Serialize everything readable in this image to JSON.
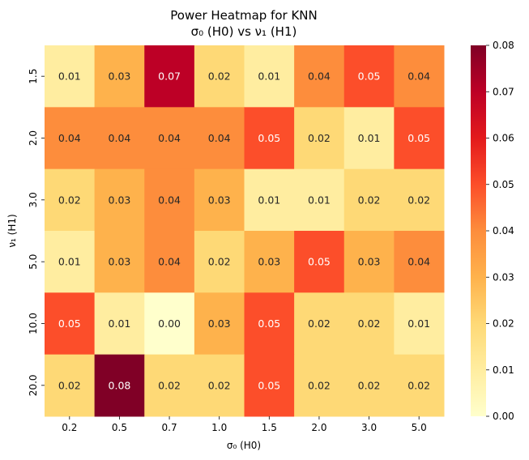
{
  "chart_data": {
    "type": "heatmap",
    "title": "Power Heatmap for KNN",
    "subtitle": "σ₀ (H0) vs ν₁ (H1)",
    "xlabel": "σ₀ (H0)",
    "ylabel": "ν₁ (H1)",
    "x_categories": [
      "0.2",
      "0.5",
      "0.7",
      "1.0",
      "1.5",
      "2.0",
      "3.0",
      "5.0"
    ],
    "y_categories": [
      "1.5",
      "2.0",
      "3.0",
      "5.0",
      "10.0",
      "20.0"
    ],
    "values": [
      [
        0.01,
        0.03,
        0.07,
        0.02,
        0.01,
        0.04,
        0.05,
        0.04
      ],
      [
        0.04,
        0.04,
        0.04,
        0.04,
        0.05,
        0.02,
        0.01,
        0.05
      ],
      [
        0.02,
        0.03,
        0.04,
        0.03,
        0.01,
        0.01,
        0.02,
        0.02
      ],
      [
        0.01,
        0.03,
        0.04,
        0.02,
        0.03,
        0.05,
        0.03,
        0.04
      ],
      [
        0.05,
        0.01,
        0.0,
        0.03,
        0.05,
        0.02,
        0.02,
        0.01
      ],
      [
        0.02,
        0.08,
        0.02,
        0.02,
        0.05,
        0.02,
        0.02,
        0.02
      ]
    ],
    "colorbar": {
      "min": 0.0,
      "max": 0.08,
      "ticks": [
        "0.00",
        "0.01",
        "0.02",
        "0.03",
        "0.04",
        "0.05",
        "0.06",
        "0.07",
        "0.08"
      ],
      "colormap": [
        "#ffffcc",
        "#ffeda0",
        "#fed976",
        "#feb24c",
        "#fd8d3c",
        "#fc4e2a",
        "#e31a1c",
        "#bd0026",
        "#800026"
      ]
    }
  }
}
